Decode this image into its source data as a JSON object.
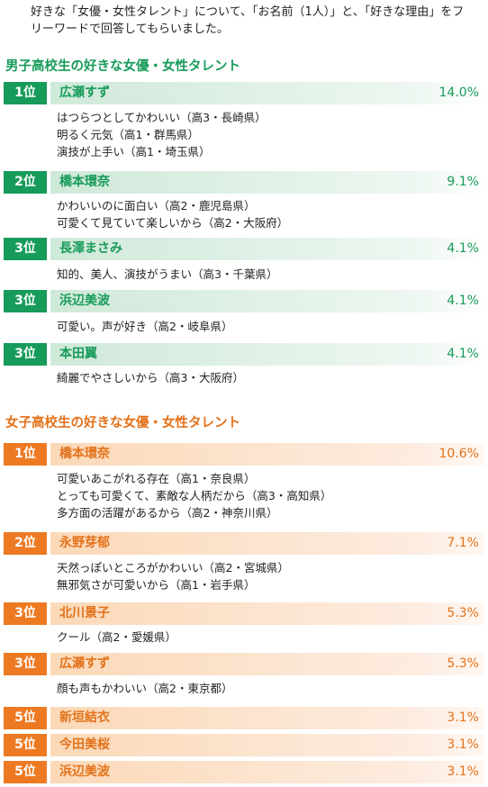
{
  "intro": {
    "line1": "好きな「女優・女性タレント」について、「お名前（1人）」と、「好きな理由」をフ",
    "line2": "リーワードで回答してもらいました。"
  },
  "boys": {
    "title": "男子高校生の好きな女優・女性タレント",
    "items": [
      {
        "rank": "1位",
        "name": "広瀬すず",
        "pct": "14.0%",
        "reasons": [
          "はつらつとしてかわいい（高3・長崎県）",
          "明るく元気（高1・群馬県）",
          "演技が上手い（高1・埼玉県）"
        ]
      },
      {
        "rank": "2位",
        "name": "橋本環奈",
        "pct": "9.1%",
        "reasons": [
          "かわいいのに面白い（高2・鹿児島県）",
          "可愛くて見ていて楽しいから（高2・大阪府）"
        ]
      },
      {
        "rank": "3位",
        "name": "長澤まさみ",
        "pct": "4.1%",
        "reasons": [
          "知的、美人、演技がうまい（高3・千葉県）"
        ]
      },
      {
        "rank": "3位",
        "name": "浜辺美波",
        "pct": "4.1%",
        "reasons": [
          "可愛い。声が好き（高2・岐阜県）"
        ]
      },
      {
        "rank": "3位",
        "name": "本田翼",
        "pct": "4.1%",
        "reasons": [
          "綺麗でやさしいから（高3・大阪府）"
        ]
      }
    ]
  },
  "girls": {
    "title": "女子高校生の好きな女優・女性タレント",
    "items": [
      {
        "rank": "1位",
        "name": "橋本環奈",
        "pct": "10.6%",
        "reasons": [
          "可愛いあこがれる存在（高1・奈良県）",
          "とっても可愛くて、素敵な人柄だから（高3・高知県）",
          "多方面の活躍があるから（高2・神奈川県）"
        ]
      },
      {
        "rank": "2位",
        "name": "永野芽郁",
        "pct": "7.1%",
        "reasons": [
          "天然っぽいところがかわいい（高2・宮城県）",
          "無邪気さが可愛いから（高1・岩手県）"
        ]
      },
      {
        "rank": "3位",
        "name": "北川景子",
        "pct": "5.3%",
        "reasons": [
          "クール（高2・愛媛県）"
        ]
      },
      {
        "rank": "3位",
        "name": "広瀬すず",
        "pct": "5.3%",
        "reasons": [
          "顔も声もかわいい（高2・東京都）"
        ]
      },
      {
        "rank": "5位",
        "name": "新垣結衣",
        "pct": "3.1%",
        "reasons": []
      },
      {
        "rank": "5位",
        "name": "今田美桜",
        "pct": "3.1%",
        "reasons": []
      },
      {
        "rank": "5位",
        "name": "浜辺美波",
        "pct": "3.1%",
        "reasons": []
      }
    ]
  }
}
